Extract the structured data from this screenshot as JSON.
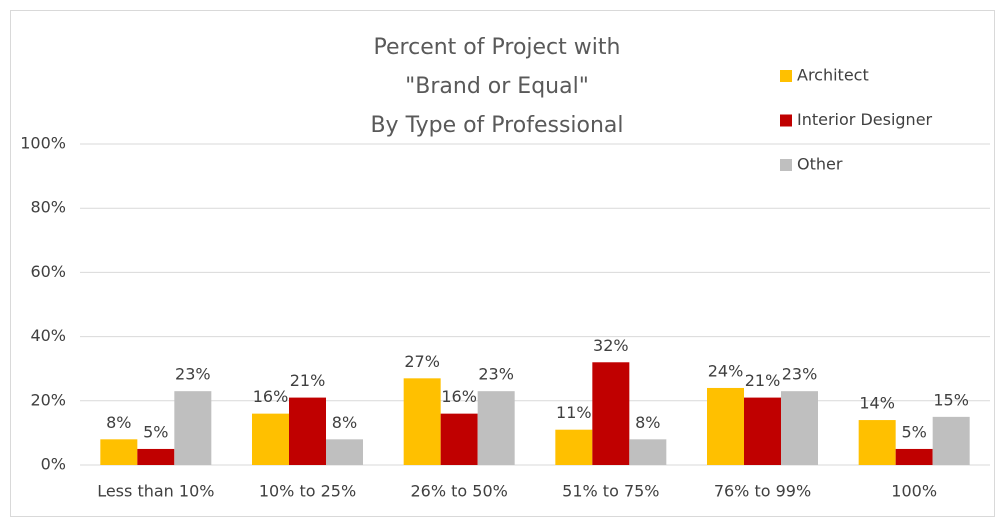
{
  "chart_data": {
    "type": "bar",
    "title": [
      "Percent of Project with",
      "\"Brand or Equal\"",
      "By Type of Professional"
    ],
    "categories": [
      "Less than 10%",
      "10% to 25%",
      "26% to 50%",
      "51% to 75%",
      "76% to 99%",
      "100%"
    ],
    "series": [
      {
        "name": "Architect",
        "color": "#ffc000",
        "values": [
          8,
          16,
          27,
          11,
          24,
          14
        ],
        "value_labels": [
          "8%",
          "16%",
          "27%",
          "11%",
          "24%",
          "14%"
        ]
      },
      {
        "name": "Interior Designer",
        "color": "#c00000",
        "values": [
          5,
          21,
          16,
          32,
          21,
          5
        ],
        "value_labels": [
          "5%",
          "21%",
          "16%",
          "32%",
          "21%",
          "5%"
        ]
      },
      {
        "name": "Other",
        "color": "#bfbfbf",
        "values": [
          23,
          8,
          23,
          8,
          23,
          15
        ],
        "value_labels": [
          "23%",
          "8%",
          "23%",
          "8%",
          "23%",
          "15%"
        ]
      }
    ],
    "ylim": [
      0,
      100
    ],
    "yticks": [
      {
        "value": 0,
        "label": "0%"
      },
      {
        "value": 20,
        "label": "20%"
      },
      {
        "value": 40,
        "label": "40%"
      },
      {
        "value": 60,
        "label": "60%"
      },
      {
        "value": 80,
        "label": "80%"
      },
      {
        "value": 100,
        "label": "100%"
      }
    ],
    "grid": true,
    "legend": "top-right"
  }
}
